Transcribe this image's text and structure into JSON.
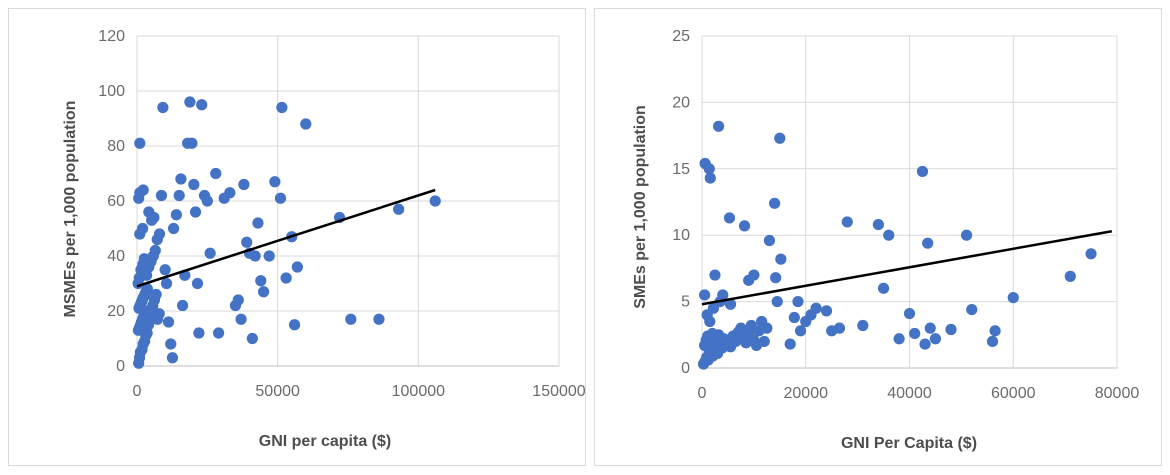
{
  "chart_data": [
    {
      "type": "scatter",
      "xlabel": "GNI per capita ($)",
      "ylabel": "MSMEs per 1,000 population",
      "xlim": [
        0,
        150000
      ],
      "ylim": [
        0,
        120
      ],
      "x_ticks": [
        0,
        50000,
        100000,
        150000
      ],
      "x_tick_labels": [
        "0",
        "50000",
        "100000",
        "150000"
      ],
      "y_ticks": [
        0,
        20,
        40,
        60,
        80,
        100,
        120
      ],
      "y_tick_labels": [
        "0",
        "20",
        "40",
        "60",
        "80",
        "100",
        "120"
      ],
      "grid": true,
      "marker_color": "#4472c4",
      "trendline_color": "#000000",
      "trendline": {
        "x": [
          0,
          106000
        ],
        "y": [
          29,
          64
        ]
      },
      "points": [
        [
          600,
          1
        ],
        [
          900,
          3
        ],
        [
          1200,
          5
        ],
        [
          1800,
          6
        ],
        [
          2200,
          8
        ],
        [
          2700,
          9
        ],
        [
          3100,
          11
        ],
        [
          3600,
          12
        ],
        [
          500,
          13
        ],
        [
          900,
          14
        ],
        [
          1300,
          15
        ],
        [
          1600,
          16
        ],
        [
          2000,
          17
        ],
        [
          2400,
          18
        ],
        [
          2900,
          19
        ],
        [
          3300,
          20
        ],
        [
          700,
          21
        ],
        [
          1100,
          22
        ],
        [
          1500,
          23
        ],
        [
          1900,
          24
        ],
        [
          2300,
          25
        ],
        [
          2800,
          26
        ],
        [
          3200,
          27
        ],
        [
          3700,
          28
        ],
        [
          4100,
          15
        ],
        [
          4600,
          18
        ],
        [
          5100,
          20
        ],
        [
          5600,
          22
        ],
        [
          6200,
          24
        ],
        [
          6800,
          26
        ],
        [
          7300,
          17
        ],
        [
          7900,
          19
        ],
        [
          400,
          30
        ],
        [
          800,
          32
        ],
        [
          1400,
          35
        ],
        [
          2100,
          37
        ],
        [
          2600,
          39
        ],
        [
          3400,
          33
        ],
        [
          4200,
          36
        ],
        [
          5000,
          38
        ],
        [
          5800,
          40
        ],
        [
          6500,
          42
        ],
        [
          7200,
          46
        ],
        [
          8000,
          48
        ],
        [
          1000,
          48
        ],
        [
          2000,
          50
        ],
        [
          600,
          61
        ],
        [
          1000,
          63
        ],
        [
          2200,
          64
        ],
        [
          4200,
          56
        ],
        [
          5200,
          53
        ],
        [
          6000,
          54
        ],
        [
          1000,
          81
        ],
        [
          8700,
          62
        ],
        [
          9200,
          94
        ],
        [
          10000,
          35
        ],
        [
          10500,
          30
        ],
        [
          11200,
          16
        ],
        [
          12000,
          8
        ],
        [
          12600,
          3
        ],
        [
          13000,
          50
        ],
        [
          14000,
          55
        ],
        [
          15000,
          62
        ],
        [
          15600,
          68
        ],
        [
          16200,
          22
        ],
        [
          17000,
          33
        ],
        [
          18000,
          81
        ],
        [
          18800,
          96
        ],
        [
          19500,
          81
        ],
        [
          20200,
          66
        ],
        [
          20800,
          56
        ],
        [
          21500,
          30
        ],
        [
          22000,
          12
        ],
        [
          23000,
          95
        ],
        [
          24000,
          62
        ],
        [
          25000,
          60
        ],
        [
          26000,
          41
        ],
        [
          28000,
          70
        ],
        [
          29000,
          12
        ],
        [
          31000,
          61
        ],
        [
          33000,
          63
        ],
        [
          35000,
          22
        ],
        [
          36000,
          24
        ],
        [
          37000,
          17
        ],
        [
          38000,
          66
        ],
        [
          39000,
          45
        ],
        [
          40000,
          41
        ],
        [
          41000,
          10
        ],
        [
          42000,
          40
        ],
        [
          43000,
          52
        ],
        [
          44000,
          31
        ],
        [
          45000,
          27
        ],
        [
          47000,
          40
        ],
        [
          49000,
          67
        ],
        [
          51000,
          61
        ],
        [
          51500,
          94
        ],
        [
          53000,
          32
        ],
        [
          55000,
          47
        ],
        [
          56000,
          15
        ],
        [
          57000,
          36
        ],
        [
          60000,
          88
        ],
        [
          72000,
          54
        ],
        [
          76000,
          17
        ],
        [
          86000,
          17
        ],
        [
          93000,
          57
        ],
        [
          106000,
          60
        ]
      ]
    },
    {
      "type": "scatter",
      "xlabel": "GNI Per Capita ($)",
      "ylabel": "SMEs per 1,000 population",
      "xlim": [
        0,
        80000
      ],
      "ylim": [
        0,
        25
      ],
      "x_ticks": [
        0,
        20000,
        40000,
        60000,
        80000
      ],
      "x_tick_labels": [
        "0",
        "20000",
        "40000",
        "60000",
        "80000"
      ],
      "y_ticks": [
        0,
        5,
        10,
        15,
        20,
        25
      ],
      "y_tick_labels": [
        "0",
        "5",
        "10",
        "15",
        "20",
        "25"
      ],
      "grid": true,
      "marker_color": "#4472c4",
      "trendline_color": "#000000",
      "trendline": {
        "x": [
          0,
          79000
        ],
        "y": [
          4.8,
          10.3
        ]
      },
      "points": [
        [
          300,
          0.3
        ],
        [
          600,
          0.5
        ],
        [
          900,
          0.8
        ],
        [
          1200,
          0.6
        ],
        [
          1500,
          1.0
        ],
        [
          1800,
          1.2
        ],
        [
          2100,
          0.9
        ],
        [
          2400,
          1.4
        ],
        [
          2700,
          1.6
        ],
        [
          3000,
          1.1
        ],
        [
          3300,
          1.8
        ],
        [
          3600,
          2.0
        ],
        [
          3900,
          1.5
        ],
        [
          4200,
          2.2
        ],
        [
          500,
          1.7
        ],
        [
          800,
          2.1
        ],
        [
          1100,
          2.4
        ],
        [
          1400,
          1.3
        ],
        [
          1700,
          1.9
        ],
        [
          2000,
          2.6
        ],
        [
          2600,
          2.3
        ],
        [
          3200,
          2.5
        ],
        [
          4500,
          1.8
        ],
        [
          5000,
          2.1
        ],
        [
          5500,
          1.6
        ],
        [
          6000,
          2.4
        ],
        [
          6500,
          2.0
        ],
        [
          7000,
          2.7
        ],
        [
          7500,
          3.0
        ],
        [
          8000,
          2.2
        ],
        [
          8500,
          1.9
        ],
        [
          9000,
          2.6
        ],
        [
          9500,
          3.2
        ],
        [
          10000,
          2.1
        ],
        [
          10500,
          1.7
        ],
        [
          11000,
          2.8
        ],
        [
          11500,
          3.5
        ],
        [
          12000,
          2.0
        ],
        [
          12500,
          3.0
        ],
        [
          13000,
          9.6
        ],
        [
          500,
          5.5
        ],
        [
          1000,
          4.0
        ],
        [
          1500,
          3.5
        ],
        [
          2200,
          4.5
        ],
        [
          2500,
          7.0
        ],
        [
          3500,
          5.0
        ],
        [
          4000,
          5.5
        ],
        [
          5500,
          4.8
        ],
        [
          600,
          15.4
        ],
        [
          1400,
          15.0
        ],
        [
          1600,
          14.3
        ],
        [
          3200,
          18.2
        ],
        [
          5300,
          11.3
        ],
        [
          8200,
          10.7
        ],
        [
          9000,
          6.6
        ],
        [
          10000,
          7.0
        ],
        [
          14000,
          12.4
        ],
        [
          14200,
          6.8
        ],
        [
          14500,
          5.0
        ],
        [
          15000,
          17.3
        ],
        [
          15200,
          8.2
        ],
        [
          17000,
          1.8
        ],
        [
          17800,
          3.8
        ],
        [
          18500,
          5.0
        ],
        [
          19000,
          2.8
        ],
        [
          20000,
          3.5
        ],
        [
          21000,
          4.0
        ],
        [
          22000,
          4.5
        ],
        [
          24000,
          4.3
        ],
        [
          25000,
          2.8
        ],
        [
          26500,
          3.0
        ],
        [
          28000,
          11.0
        ],
        [
          31000,
          3.2
        ],
        [
          34000,
          10.8
        ],
        [
          35000,
          6.0
        ],
        [
          36000,
          10.0
        ],
        [
          38000,
          2.2
        ],
        [
          40000,
          4.1
        ],
        [
          41000,
          2.6
        ],
        [
          42500,
          14.8
        ],
        [
          43000,
          1.8
        ],
        [
          43500,
          9.4
        ],
        [
          44000,
          3.0
        ],
        [
          45000,
          2.2
        ],
        [
          48000,
          2.9
        ],
        [
          51000,
          10.0
        ],
        [
          52000,
          4.4
        ],
        [
          56000,
          2.0
        ],
        [
          56500,
          2.8
        ],
        [
          60000,
          5.3
        ],
        [
          71000,
          6.9
        ],
        [
          75000,
          8.6
        ]
      ]
    }
  ]
}
